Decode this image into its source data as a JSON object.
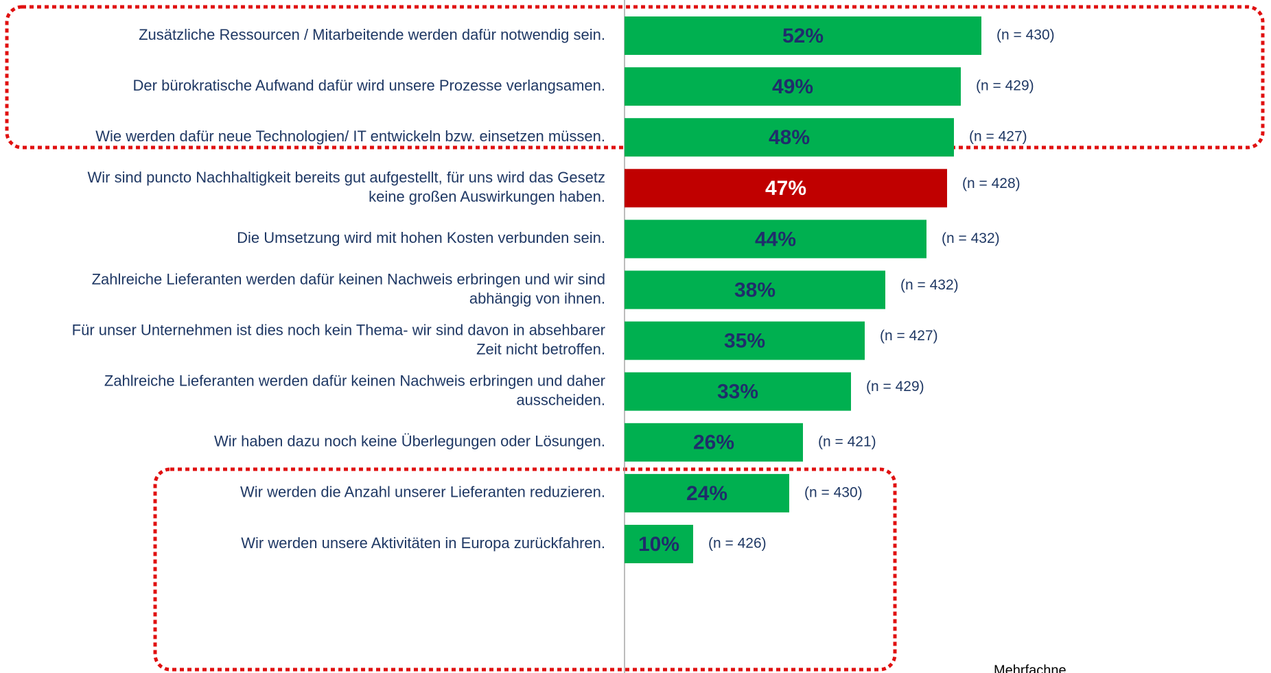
{
  "chart_data": {
    "type": "barh",
    "categories": [
      [
        "Zusätzliche Ressourcen / Mitarbeitende werden dafür notwendig sein."
      ],
      [
        "Der bürokratische Aufwand dafür wird unsere Prozesse verlangsamen."
      ],
      [
        "Wie werden dafür neue Technologien/ IT entwickeln bzw. einsetzen müssen."
      ],
      [
        "Wir sind puncto Nachhaltigkeit bereits gut aufgestellt, für uns wird das Gesetz",
        "keine großen Auswirkungen haben."
      ],
      [
        "Die Umsetzung wird mit hohen Kosten verbunden sein."
      ],
      [
        "Zahlreiche Lieferanten werden dafür keinen Nachweis erbringen und wir sind",
        "abhängig von ihnen."
      ],
      [
        "Für unser Unternehmen ist dies noch kein Thema- wir sind davon in absehbarer",
        "Zeit nicht betroffen."
      ],
      [
        "Zahlreiche Lieferanten werden dafür keinen Nachweis erbringen und daher",
        "ausscheiden."
      ],
      [
        "Wir haben dazu noch keine Überlegungen oder Lösungen."
      ],
      [
        "Wir werden die Anzahl unserer Lieferanten reduzieren."
      ],
      [
        "Wir werden unsere Aktivitäten in Europa zurückfahren."
      ]
    ],
    "values": [
      52,
      49,
      48,
      47,
      44,
      38,
      35,
      33,
      26,
      24,
      10
    ],
    "value_labels": [
      "52%",
      "49%",
      "48%",
      "47%",
      "44%",
      "38%",
      "35%",
      "33%",
      "26%",
      "24%",
      "10%"
    ],
    "colors": [
      "#00b050",
      "#00b050",
      "#00b050",
      "#c00000",
      "#00b050",
      "#00b050",
      "#00b050",
      "#00b050",
      "#00b050",
      "#00b050",
      "#00b050"
    ],
    "annotations": [
      "(n = 430)",
      "(n = 429)",
      "(n = 427)",
      "(n = 428)",
      "(n = 432)",
      "(n = 432)",
      "(n = 427)",
      "(n = 429)",
      "(n = 421)",
      "(n = 430)",
      "(n = 426)"
    ],
    "xlim": [
      0,
      100
    ],
    "footnote": "Mehrfachne"
  }
}
